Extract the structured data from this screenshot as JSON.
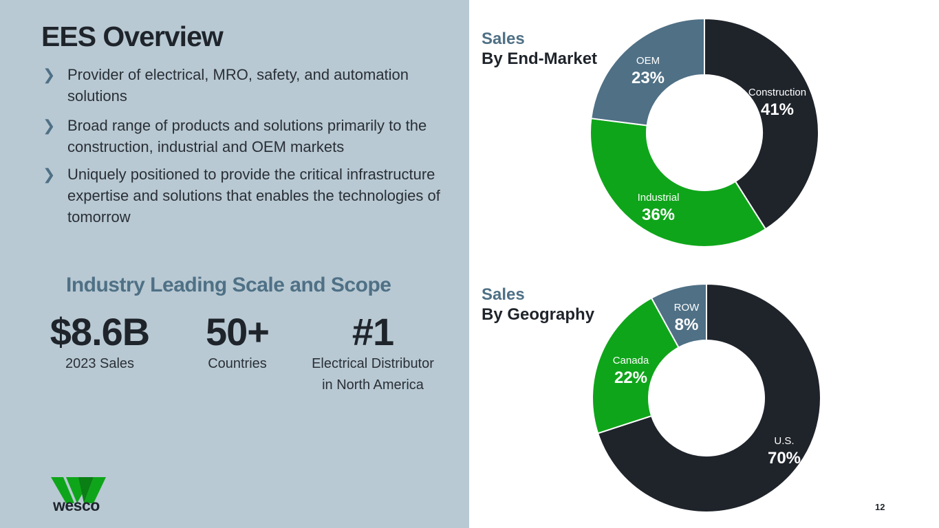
{
  "slide": {
    "title": "EES Overview",
    "page_number": "12",
    "bullet_marker": "❯",
    "bullets": [
      "Provider of electrical, MRO, safety, and automation solutions",
      "Broad range of products and solutions primarily to the construction, industrial and OEM markets",
      "Uniquely positioned to provide the critical infrastructure expertise and solutions that enables the technologies of tomorrow"
    ],
    "scale_heading": "Industry Leading Scale and Scope",
    "stats": [
      {
        "value": "$8.6B",
        "label": "2023 Sales"
      },
      {
        "value": "50+",
        "label": "Countries"
      },
      {
        "value": "#1",
        "label_line1": "Electrical Distributor",
        "label_line2": "in North America"
      }
    ],
    "logo_text": "wesco"
  },
  "colors": {
    "panel": "#b8c9d3",
    "dark": "#1f242b",
    "green": "#0fa51a",
    "slate": "#4f7085",
    "white": "#ffffff"
  },
  "chart_data": [
    {
      "type": "pie",
      "title": "Sales",
      "subtitle": "By End-Market",
      "donut": true,
      "categories": [
        "Construction",
        "Industrial",
        "OEM"
      ],
      "values": [
        41,
        36,
        23
      ],
      "value_labels": [
        "41%",
        "36%",
        "23%"
      ],
      "colors": [
        "#1f242b",
        "#0fa51a",
        "#4f7085"
      ]
    },
    {
      "type": "pie",
      "title": "Sales",
      "subtitle": "By Geography",
      "donut": true,
      "categories": [
        "U.S.",
        "Canada",
        "ROW"
      ],
      "values": [
        70,
        22,
        8
      ],
      "value_labels": [
        "70%",
        "22%",
        "8%"
      ],
      "colors": [
        "#1f242b",
        "#0fa51a",
        "#4f7085"
      ]
    }
  ]
}
